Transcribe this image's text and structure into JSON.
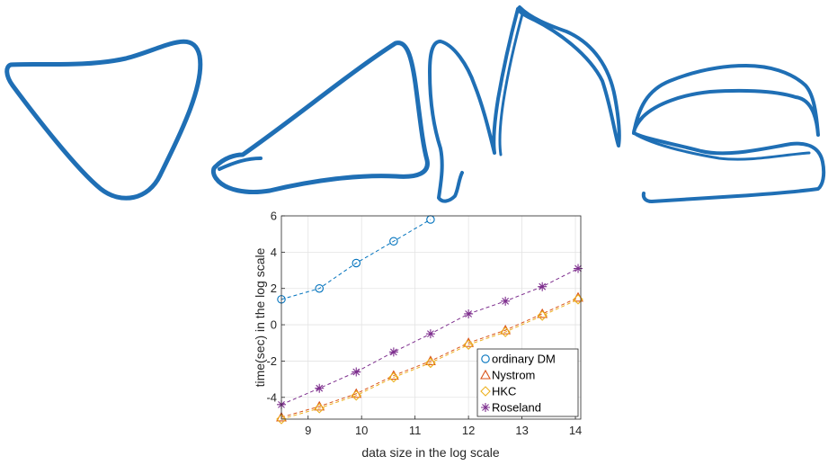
{
  "colors": {
    "curve": "#1f6fb5",
    "grid": "#e3e3e3",
    "axis": "#262626"
  },
  "chart_data": {
    "type": "line",
    "title": "",
    "xlabel": "data size in the log scale",
    "ylabel": "time(sec) in the log scale",
    "xlim": [
      8.5,
      14.1
    ],
    "ylim": [
      -5.2,
      6
    ],
    "xticks": [
      9,
      10,
      11,
      12,
      13,
      14
    ],
    "yticks": [
      -4,
      -2,
      0,
      2,
      4,
      6
    ],
    "xtick_labels": [
      "9",
      "10",
      "11",
      "12",
      "13",
      "14"
    ],
    "ytick_labels": [
      "-4",
      "-2",
      "0",
      "2",
      "4",
      "6"
    ],
    "grid": true,
    "legend_position": "bottom-right",
    "series": [
      {
        "name": "ordinary DM",
        "color": "#0072BD",
        "marker": "circle",
        "x": [
          8.5,
          9.21,
          9.9,
          10.6,
          11.29
        ],
        "y": [
          1.4,
          2.0,
          3.4,
          4.6,
          5.8
        ]
      },
      {
        "name": "Nystrom",
        "color": "#D95319",
        "marker": "triangle",
        "x": [
          8.5,
          9.21,
          9.9,
          10.6,
          11.29,
          12.0,
          12.69,
          13.38,
          14.05
        ],
        "y": [
          -5.1,
          -4.5,
          -3.8,
          -2.8,
          -2.0,
          -1.0,
          -0.3,
          0.6,
          1.5
        ]
      },
      {
        "name": "HKC",
        "color": "#EDB120",
        "marker": "diamond",
        "x": [
          8.5,
          9.21,
          9.9,
          10.6,
          11.29,
          12.0,
          12.69,
          13.38,
          14.05
        ],
        "y": [
          -5.2,
          -4.6,
          -3.9,
          -2.9,
          -2.1,
          -1.1,
          -0.4,
          0.5,
          1.4
        ]
      },
      {
        "name": "Roseland",
        "color": "#7E2F8E",
        "marker": "star",
        "x": [
          8.5,
          9.21,
          9.9,
          10.6,
          11.29,
          12.0,
          12.69,
          13.38,
          14.05
        ],
        "y": [
          -4.4,
          -3.5,
          -2.6,
          -1.5,
          -0.5,
          0.6,
          1.3,
          2.1,
          3.1
        ]
      }
    ]
  }
}
